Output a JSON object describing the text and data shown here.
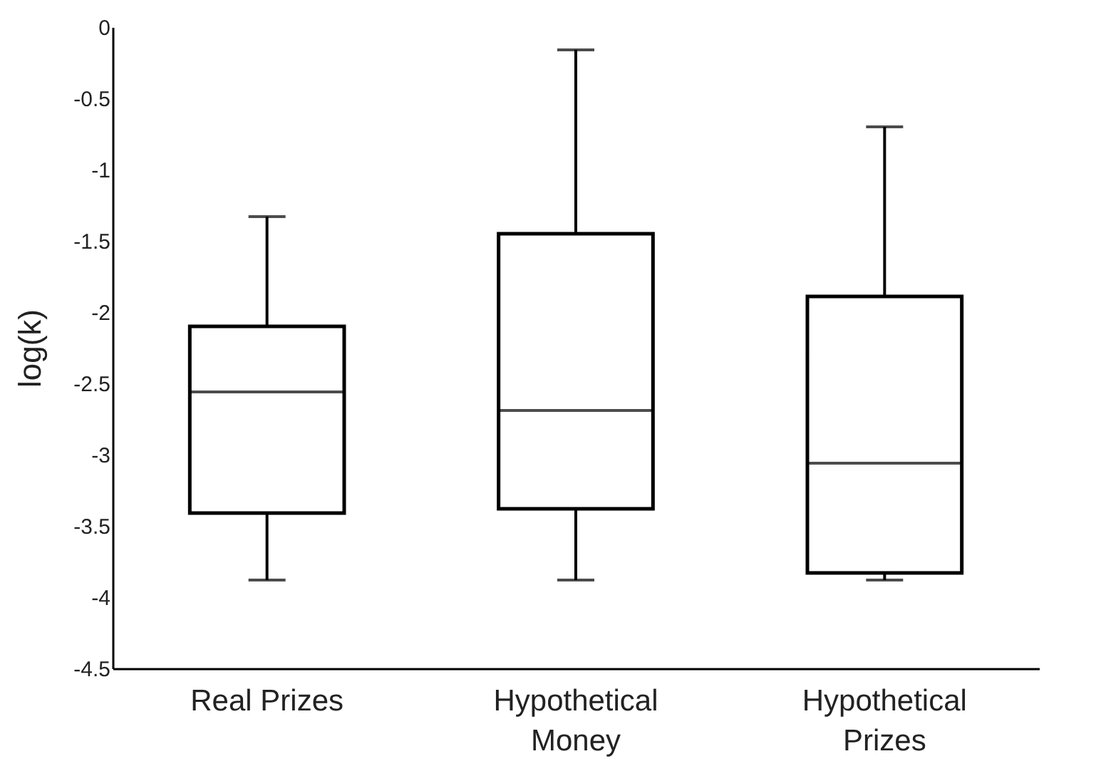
{
  "chart_data": {
    "type": "box",
    "ylabel": "log(k)",
    "categories": [
      "Real Prizes",
      "Hypothetical Money",
      "Hypothetical Prizes"
    ],
    "boxes": [
      {
        "low": -3.88,
        "q1": -3.41,
        "median": -2.56,
        "q3": -2.1,
        "high": -1.33
      },
      {
        "low": -3.88,
        "q1": -3.38,
        "median": -2.69,
        "q3": -1.45,
        "high": -0.16
      },
      {
        "low": -3.88,
        "q1": -3.83,
        "median": -3.06,
        "q3": -1.89,
        "high": -0.7
      }
    ],
    "ylim": [
      -4.5,
      0
    ],
    "yticks": [
      -4.5,
      -4,
      -3.5,
      -3,
      -2.5,
      -2,
      -1.5,
      -1,
      -0.5,
      0
    ],
    "grid": false
  }
}
